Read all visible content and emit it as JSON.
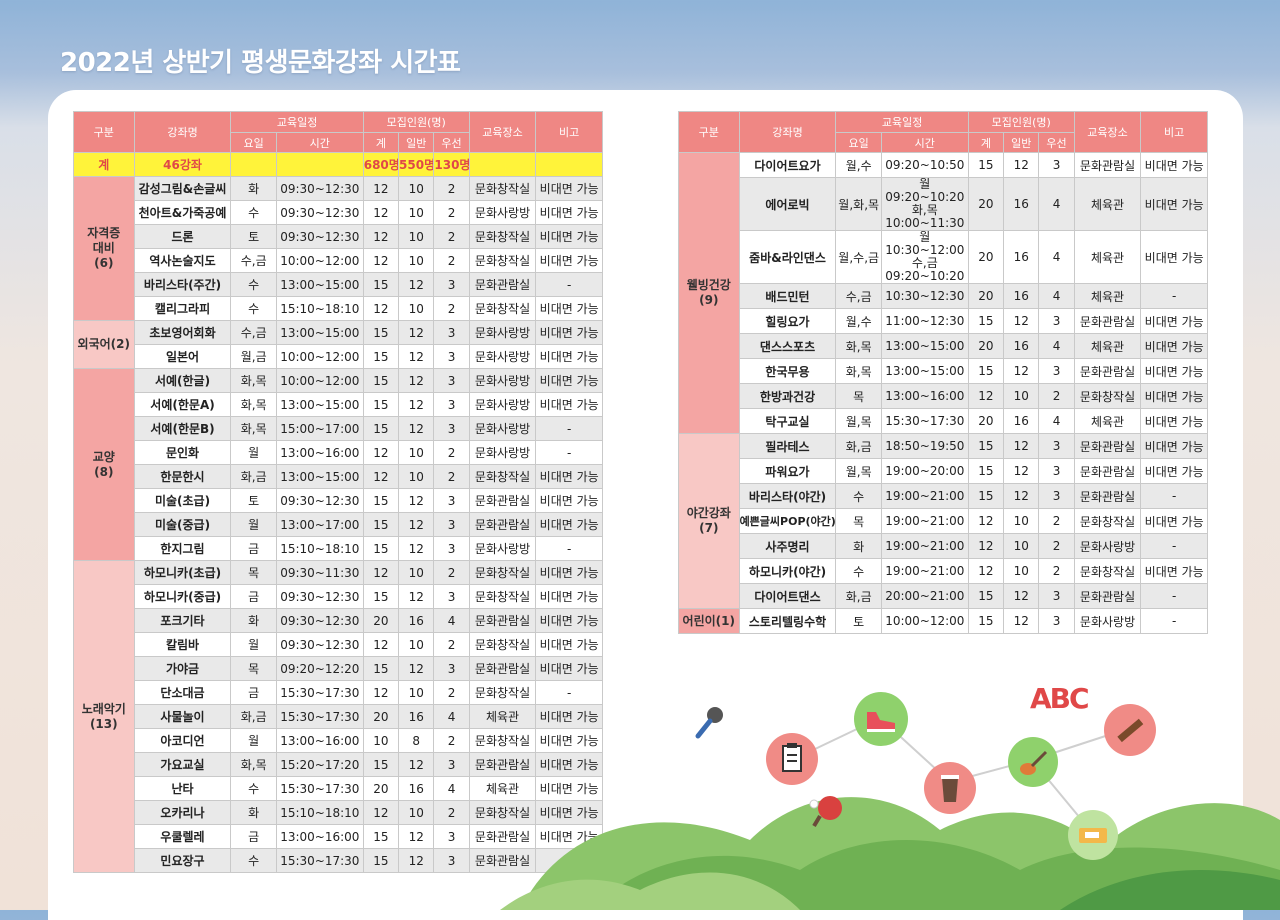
{
  "title": "2022년 상반기 평생문화강좌 시간표",
  "headers": {
    "category": "구분",
    "course": "강좌명",
    "schedule": "교육일정",
    "day": "요일",
    "time": "시간",
    "recruit": "모집인원(명)",
    "total": "계",
    "general": "일반",
    "priority": "우선",
    "place": "교육장소",
    "note": "비고"
  },
  "summary": {
    "label": "계",
    "courses": "46강좌",
    "total": "680명",
    "general": "550명",
    "priority": "130명"
  },
  "left_groups": [
    {
      "label": "자격증\n대비\n(6)",
      "rows": [
        [
          "감성그림&손글씨",
          "화",
          "09:30~12:30",
          "12",
          "10",
          "2",
          "문화창작실",
          "비대면 가능"
        ],
        [
          "천아트&가죽공예",
          "수",
          "09:30~12:30",
          "12",
          "10",
          "2",
          "문화사랑방",
          "비대면 가능"
        ],
        [
          "드론",
          "토",
          "09:30~12:30",
          "12",
          "10",
          "2",
          "문화창작실",
          "비대면 가능"
        ],
        [
          "역사논술지도",
          "수,금",
          "10:00~12:00",
          "12",
          "10",
          "2",
          "문화창작실",
          "비대면 가능"
        ],
        [
          "바리스타(주간)",
          "수",
          "13:00~15:00",
          "15",
          "12",
          "3",
          "문화관람실",
          "-"
        ],
        [
          "캘리그라피",
          "수",
          "15:10~18:10",
          "12",
          "10",
          "2",
          "문화창작실",
          "비대면 가능"
        ]
      ]
    },
    {
      "label": "외국어(2)",
      "rows": [
        [
          "초보영어회화",
          "수,금",
          "13:00~15:00",
          "15",
          "12",
          "3",
          "문화사랑방",
          "비대면 가능"
        ],
        [
          "일본어",
          "월,금",
          "10:00~12:00",
          "15",
          "12",
          "3",
          "문화사랑방",
          "비대면 가능"
        ]
      ]
    },
    {
      "label": "교양\n(8)",
      "rows": [
        [
          "서예(한글)",
          "화,목",
          "10:00~12:00",
          "15",
          "12",
          "3",
          "문화사랑방",
          "비대면 가능"
        ],
        [
          "서예(한문A)",
          "화,목",
          "13:00~15:00",
          "15",
          "12",
          "3",
          "문화사랑방",
          "비대면 가능"
        ],
        [
          "서예(한문B)",
          "화,목",
          "15:00~17:00",
          "15",
          "12",
          "3",
          "문화사랑방",
          "-"
        ],
        [
          "문인화",
          "월",
          "13:00~16:00",
          "12",
          "10",
          "2",
          "문화사랑방",
          "-"
        ],
        [
          "한문한시",
          "화,금",
          "13:00~15:00",
          "12",
          "10",
          "2",
          "문화창작실",
          "비대면 가능"
        ],
        [
          "미술(초급)",
          "토",
          "09:30~12:30",
          "15",
          "12",
          "3",
          "문화관람실",
          "비대면 가능"
        ],
        [
          "미술(중급)",
          "월",
          "13:00~17:00",
          "15",
          "12",
          "3",
          "문화관람실",
          "비대면 가능"
        ],
        [
          "한지그림",
          "금",
          "15:10~18:10",
          "15",
          "12",
          "3",
          "문화사랑방",
          "-"
        ]
      ]
    },
    {
      "label": "노래악기\n(13)",
      "rows": [
        [
          "하모니카(초급)",
          "목",
          "09:30~11:30",
          "12",
          "10",
          "2",
          "문화창작실",
          "비대면 가능"
        ],
        [
          "하모니카(중급)",
          "금",
          "09:30~12:30",
          "15",
          "12",
          "3",
          "문화창작실",
          "비대면 가능"
        ],
        [
          "포크기타",
          "화",
          "09:30~12:30",
          "20",
          "16",
          "4",
          "문화관람실",
          "비대면 가능"
        ],
        [
          "칼림바",
          "월",
          "09:30~12:30",
          "12",
          "10",
          "2",
          "문화창작실",
          "비대면 가능"
        ],
        [
          "가야금",
          "목",
          "09:20~12:20",
          "15",
          "12",
          "3",
          "문화관람실",
          "비대면 가능"
        ],
        [
          "단소대금",
          "금",
          "15:30~17:30",
          "12",
          "10",
          "2",
          "문화창작실",
          "-"
        ],
        [
          "사물놀이",
          "화,금",
          "15:30~17:30",
          "20",
          "16",
          "4",
          "체육관",
          "비대면 가능"
        ],
        [
          "아코디언",
          "월",
          "13:00~16:00",
          "10",
          "8",
          "2",
          "문화창작실",
          "비대면 가능"
        ],
        [
          "가요교실",
          "화,목",
          "15:20~17:20",
          "15",
          "12",
          "3",
          "문화관람실",
          "비대면 가능"
        ],
        [
          "난타",
          "수",
          "15:30~17:30",
          "20",
          "16",
          "4",
          "체육관",
          "비대면 가능"
        ],
        [
          "오카리나",
          "화",
          "15:10~18:10",
          "12",
          "10",
          "2",
          "문화창작실",
          "비대면 가능"
        ],
        [
          "우쿨렐레",
          "금",
          "13:00~16:00",
          "15",
          "12",
          "3",
          "문화관람실",
          "비대면 가능"
        ],
        [
          "민요장구",
          "수",
          "15:30~17:30",
          "15",
          "12",
          "3",
          "문화관람실",
          "-"
        ]
      ]
    }
  ],
  "right_groups": [
    {
      "label": "웰빙건강\n(9)",
      "rows": [
        [
          "다이어트요가",
          "월,수",
          "09:20~10:50",
          "15",
          "12",
          "3",
          "문화관람실",
          "비대면 가능"
        ],
        [
          "에어로빅",
          "월,화,목",
          "월 09:20~10:20\n화,목 10:00~11:30",
          "20",
          "16",
          "4",
          "체육관",
          "비대면 가능"
        ],
        [
          "줌바&라인댄스",
          "월,수,금",
          "월 10:30~12:00\n수,금 09:20~10:20",
          "20",
          "16",
          "4",
          "체육관",
          "비대면 가능"
        ],
        [
          "배드민턴",
          "수,금",
          "10:30~12:30",
          "20",
          "16",
          "4",
          "체육관",
          "-"
        ],
        [
          "힐링요가",
          "월,수",
          "11:00~12:30",
          "15",
          "12",
          "3",
          "문화관람실",
          "비대면 가능"
        ],
        [
          "댄스스포츠",
          "화,목",
          "13:00~15:00",
          "20",
          "16",
          "4",
          "체육관",
          "비대면 가능"
        ],
        [
          "한국무용",
          "화,목",
          "13:00~15:00",
          "15",
          "12",
          "3",
          "문화관람실",
          "비대면 가능"
        ],
        [
          "한방과건강",
          "목",
          "13:00~16:00",
          "12",
          "10",
          "2",
          "문화창작실",
          "비대면 가능"
        ],
        [
          "탁구교실",
          "월,목",
          "15:30~17:30",
          "20",
          "16",
          "4",
          "체육관",
          "비대면 가능"
        ]
      ]
    },
    {
      "label": "야간강좌\n(7)",
      "rows": [
        [
          "필라테스",
          "화,금",
          "18:50~19:50",
          "15",
          "12",
          "3",
          "문화관람실",
          "비대면 가능"
        ],
        [
          "파워요가",
          "월,목",
          "19:00~20:00",
          "15",
          "12",
          "3",
          "문화관람실",
          "비대면 가능"
        ],
        [
          "바리스타(야간)",
          "수",
          "19:00~21:00",
          "15",
          "12",
          "3",
          "문화관람실",
          "-"
        ],
        [
          "예쁜글씨POP(야간)",
          "목",
          "19:00~21:00",
          "12",
          "10",
          "2",
          "문화창작실",
          "비대면 가능"
        ],
        [
          "사주명리",
          "화",
          "19:00~21:00",
          "12",
          "10",
          "2",
          "문화사랑방",
          "-"
        ],
        [
          "하모니카(야간)",
          "수",
          "19:00~21:00",
          "12",
          "10",
          "2",
          "문화창작실",
          "비대면 가능"
        ],
        [
          "다이어트댄스",
          "화,금",
          "20:00~21:00",
          "15",
          "12",
          "3",
          "문화관람실",
          "-"
        ]
      ]
    },
    {
      "label": "어린이(1)",
      "rows": [
        [
          "스토리텔링수학",
          "토",
          "10:00~12:00",
          "15",
          "12",
          "3",
          "문화사랑방",
          "-"
        ]
      ]
    }
  ],
  "decor": {
    "abc": "ABC",
    "icons": [
      "microphone-icon",
      "clipboard-icon",
      "sneaker-icon",
      "coffee-icon",
      "guitar-icon",
      "ping-pong-icon",
      "gayageum-icon",
      "ticket-icon"
    ]
  }
}
